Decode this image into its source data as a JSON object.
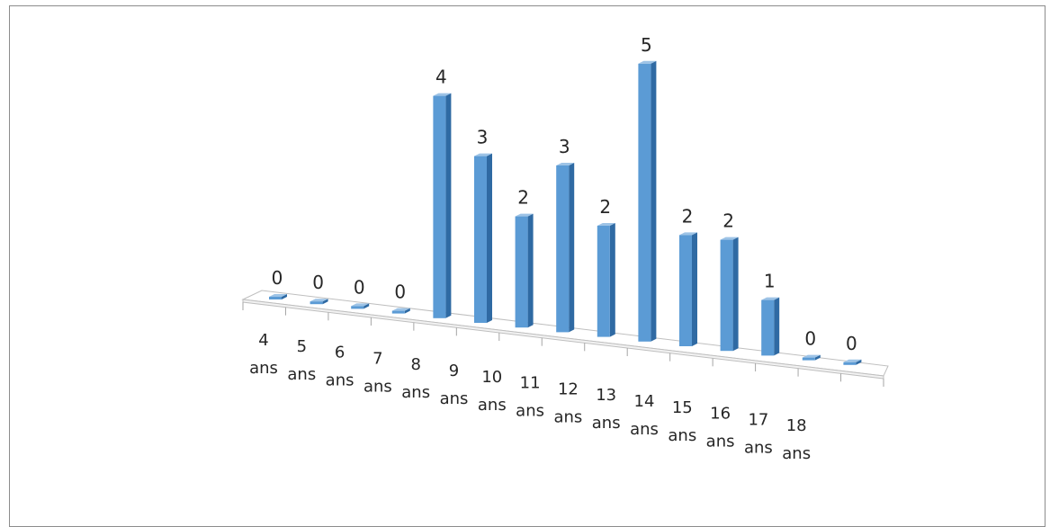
{
  "chart_data": {
    "type": "bar",
    "style": "3d-column",
    "categories": [
      "4 ans",
      "5 ans",
      "6 ans",
      "7 ans",
      "8 ans",
      "9 ans",
      "10 ans",
      "11 ans",
      "12 ans",
      "13 ans",
      "14 ans",
      "15 ans",
      "16 ans",
      "17 ans",
      "18 ans"
    ],
    "category_lines": [
      [
        "4",
        "ans"
      ],
      [
        "5",
        "ans"
      ],
      [
        "6",
        "ans"
      ],
      [
        "7",
        "ans"
      ],
      [
        "8",
        "ans"
      ],
      [
        "9",
        "ans"
      ],
      [
        "10",
        "ans"
      ],
      [
        "11",
        "ans"
      ],
      [
        "12",
        "ans"
      ],
      [
        "13",
        "ans"
      ],
      [
        "14",
        "ans"
      ],
      [
        "15",
        "ans"
      ],
      [
        "16",
        "ans"
      ],
      [
        "17",
        "ans"
      ],
      [
        "18",
        "ans"
      ]
    ],
    "values": [
      0,
      0,
      0,
      0,
      4,
      3,
      2,
      3,
      2,
      5,
      2,
      2,
      1,
      0,
      0
    ],
    "data_labels": [
      "0",
      "0",
      "0",
      "0",
      "4",
      "3",
      "2",
      "3",
      "2",
      "5",
      "2",
      "2",
      "1",
      "0",
      "0"
    ],
    "title": "",
    "xlabel": "",
    "ylabel": "",
    "ylim": [
      0,
      5
    ],
    "grid": false,
    "legend": "none",
    "colors": {
      "bar_front": "#5b9bd5",
      "bar_side": "#2f6aa3",
      "bar_top": "#9dc3e6",
      "floor_stroke": "#bfbfbf",
      "text": "#262626"
    }
  }
}
